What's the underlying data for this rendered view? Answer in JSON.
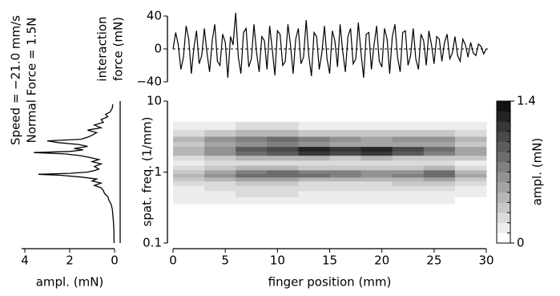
{
  "chart_data": [
    {
      "type": "line",
      "ylabel_lines": [
        "interaction",
        "force (mN)"
      ],
      "color": "#000000",
      "xlim": [
        0,
        30
      ],
      "ylim": [
        -40,
        40
      ],
      "yticks": [
        {
          "value": -40,
          "label": "−40"
        },
        0,
        40
      ],
      "zero_line": true,
      "x": [
        0,
        0.25,
        0.5,
        0.75,
        1,
        1.25,
        1.5,
        1.75,
        2,
        2.25,
        2.5,
        2.75,
        3,
        3.25,
        3.5,
        3.75,
        4,
        4.25,
        4.5,
        4.75,
        5,
        5.25,
        5.5,
        5.75,
        6,
        6.25,
        6.5,
        6.75,
        7,
        7.25,
        7.5,
        7.75,
        8,
        8.25,
        8.5,
        8.75,
        9,
        9.25,
        9.5,
        9.75,
        10,
        10.25,
        10.5,
        10.75,
        11,
        11.25,
        11.5,
        11.75,
        12,
        12.25,
        12.5,
        12.75,
        13,
        13.25,
        13.5,
        13.75,
        14,
        14.25,
        14.5,
        14.75,
        15,
        15.25,
        15.5,
        15.75,
        16,
        16.25,
        16.5,
        16.75,
        17,
        17.25,
        17.5,
        17.75,
        18,
        18.25,
        18.5,
        18.75,
        19,
        19.25,
        19.5,
        19.75,
        20,
        20.25,
        20.5,
        20.75,
        21,
        21.25,
        21.5,
        21.75,
        22,
        22.25,
        22.5,
        22.75,
        23,
        23.25,
        23.5,
        23.75,
        24,
        24.25,
        24.5,
        24.75,
        25,
        25.25,
        25.5,
        25.75,
        26,
        26.25,
        26.5,
        26.75,
        27,
        27.25,
        27.5,
        27.75,
        28,
        28.25,
        28.5,
        28.75,
        29,
        29.25,
        29.5,
        29.75,
        30
      ],
      "values": [
        0,
        20,
        5,
        -25,
        -10,
        28,
        12,
        -30,
        2,
        22,
        -18,
        -8,
        25,
        -5,
        -28,
        10,
        30,
        -15,
        -20,
        18,
        8,
        -35,
        15,
        5,
        44,
        -10,
        -30,
        20,
        25,
        -22,
        -12,
        30,
        -5,
        -28,
        15,
        10,
        -25,
        28,
        0,
        -32,
        22,
        18,
        -20,
        -15,
        30,
        5,
        -30,
        12,
        25,
        -18,
        -10,
        35,
        -8,
        -33,
        20,
        15,
        -25,
        -5,
        28,
        -12,
        -30,
        22,
        10,
        -22,
        30,
        -3,
        -28,
        15,
        25,
        -18,
        -12,
        32,
        -5,
        -35,
        18,
        20,
        -25,
        5,
        28,
        -15,
        -22,
        25,
        12,
        -30,
        15,
        30,
        -10,
        -28,
        20,
        22,
        -20,
        -8,
        25,
        -12,
        -25,
        18,
        10,
        -20,
        22,
        5,
        -18,
        15,
        12,
        -15,
        8,
        18,
        -12,
        -5,
        15,
        -8,
        -15,
        12,
        5,
        -10,
        8,
        -5,
        -8,
        6,
        3,
        -6,
        0
      ]
    },
    {
      "type": "line",
      "orientation": "horizontal",
      "xlabel": "ampl. (mN)",
      "color": "#000000",
      "annotations": [
        "Speed = −21.0 mm/s",
        "Normal Force = 1.5N"
      ],
      "xlim": [
        4,
        0
      ],
      "xticks": [
        4,
        2,
        0
      ],
      "ylim": [
        0.1,
        10
      ],
      "ylog": true,
      "y": [
        0.1,
        0.15,
        0.2,
        0.25,
        0.3,
        0.35,
        0.4,
        0.45,
        0.5,
        0.55,
        0.6,
        0.65,
        0.7,
        0.75,
        0.8,
        0.85,
        0.9,
        0.93,
        0.96,
        1.0,
        1.05,
        1.1,
        1.2,
        1.3,
        1.4,
        1.5,
        1.6,
        1.7,
        1.8,
        1.88,
        1.95,
        2.05,
        2.15,
        2.3,
        2.45,
        2.6,
        2.75,
        2.9,
        3.1,
        3.3,
        3.6,
        3.9,
        4.2,
        4.6,
        5.0,
        5.5,
        6.0,
        6.5,
        7.0,
        8.0,
        9.0
      ],
      "values": [
        0.02,
        0.03,
        0.05,
        0.08,
        0.1,
        0.15,
        0.25,
        0.3,
        0.45,
        0.5,
        0.6,
        0.9,
        0.6,
        1.0,
        0.8,
        1.5,
        2.4,
        3.4,
        2.0,
        1.2,
        0.9,
        0.7,
        0.9,
        0.6,
        1.0,
        0.7,
        1.1,
        1.5,
        2.2,
        3.6,
        2.0,
        1.4,
        1.8,
        1.2,
        1.6,
        2.5,
        3.0,
        1.5,
        1.2,
        1.0,
        0.8,
        1.2,
        0.6,
        0.9,
        0.5,
        0.6,
        0.3,
        0.4,
        0.2,
        0.1,
        0.08
      ]
    },
    {
      "type": "heatmap",
      "xlabel": "finger position (mm)",
      "ylabel": "spat. freq. (1/mm)",
      "colorbar_label": "ampl. (mN)",
      "xlim": [
        0,
        30
      ],
      "xticks": [
        0,
        5,
        10,
        15,
        20,
        25,
        30
      ],
      "ylim": [
        0.1,
        10
      ],
      "yticks": [
        0.1,
        1,
        10
      ],
      "ylog": true,
      "zlim": [
        0,
        1.4
      ],
      "zticks": [
        0,
        1.4
      ],
      "levels": 14,
      "colormap": "gray_r",
      "x": [
        1.5,
        4.5,
        7.5,
        10.5,
        13.5,
        16.5,
        19.5,
        22.5,
        25.5,
        28.5
      ],
      "y": [
        0.4,
        0.5,
        0.6,
        0.7,
        0.8,
        0.9,
        1.0,
        1.15,
        1.35,
        1.6,
        1.85,
        2.1,
        2.5,
        2.9,
        3.5,
        4.5
      ],
      "values": [
        [
          0.1,
          0.1,
          0.15,
          0.1,
          0.1,
          0.1,
          0.1,
          0.1,
          0.1,
          0.05
        ],
        [
          0.1,
          0.15,
          0.2,
          0.2,
          0.15,
          0.15,
          0.1,
          0.15,
          0.15,
          0.1
        ],
        [
          0.15,
          0.2,
          0.2,
          0.25,
          0.2,
          0.2,
          0.2,
          0.2,
          0.25,
          0.15
        ],
        [
          0.2,
          0.25,
          0.3,
          0.3,
          0.25,
          0.25,
          0.25,
          0.3,
          0.3,
          0.2
        ],
        [
          0.3,
          0.4,
          0.5,
          0.5,
          0.45,
          0.4,
          0.4,
          0.45,
          0.5,
          0.3
        ],
        [
          0.4,
          0.6,
          0.8,
          0.85,
          0.8,
          0.7,
          0.65,
          0.7,
          0.85,
          0.5
        ],
        [
          0.35,
          0.55,
          0.75,
          0.8,
          0.75,
          0.7,
          0.6,
          0.65,
          0.8,
          0.45
        ],
        [
          0.2,
          0.3,
          0.4,
          0.4,
          0.35,
          0.3,
          0.3,
          0.3,
          0.4,
          0.25
        ],
        [
          0.15,
          0.2,
          0.25,
          0.25,
          0.2,
          0.2,
          0.2,
          0.2,
          0.25,
          0.15
        ],
        [
          0.25,
          0.35,
          0.4,
          0.45,
          0.4,
          0.35,
          0.4,
          0.35,
          0.35,
          0.3
        ],
        [
          0.4,
          0.6,
          0.8,
          0.9,
          1.1,
          1.0,
          1.1,
          0.9,
          0.7,
          0.5
        ],
        [
          0.45,
          0.65,
          0.9,
          1.0,
          1.2,
          1.1,
          1.2,
          1.0,
          0.8,
          0.5
        ],
        [
          0.35,
          0.5,
          0.6,
          0.7,
          0.6,
          0.55,
          0.5,
          0.5,
          0.5,
          0.35
        ],
        [
          0.4,
          0.6,
          0.75,
          0.8,
          0.7,
          0.6,
          0.55,
          0.6,
          0.65,
          0.4
        ],
        [
          0.25,
          0.35,
          0.4,
          0.4,
          0.35,
          0.3,
          0.3,
          0.3,
          0.35,
          0.2
        ],
        [
          0.1,
          0.15,
          0.2,
          0.2,
          0.15,
          0.15,
          0.15,
          0.15,
          0.15,
          0.1
        ]
      ]
    }
  ]
}
